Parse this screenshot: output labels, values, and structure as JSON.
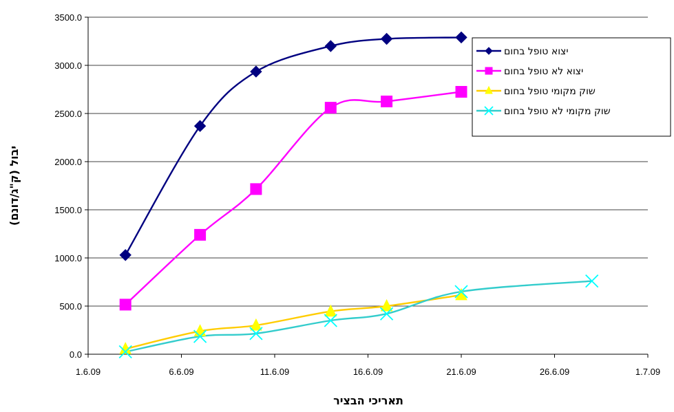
{
  "chart_data": {
    "type": "line",
    "xlabel": "תאריכי הבציר",
    "ylabel": "יבול (ק\"ג/דונם)",
    "x_unit": "date (day.month.09)",
    "xlim": [
      "2009-06-01",
      "2009-07-01"
    ],
    "ylim": [
      0,
      3500
    ],
    "x_ticks": [
      "1.6.09",
      "6.6.09",
      "11.6.09",
      "16.6.09",
      "21.6.09",
      "26.6.09",
      "1.7.09"
    ],
    "y_ticks": [
      "0.0",
      "500.0",
      "1000.0",
      "1500.0",
      "2000.0",
      "2500.0",
      "3000.0",
      "3500.0"
    ],
    "grid": "horizontal",
    "legend_position": "right",
    "series": [
      {
        "name": "יצוא טופל בחום",
        "color": "#000080",
        "marker": "diamond",
        "points": [
          {
            "x": "2009-06-03",
            "y": 1030
          },
          {
            "x": "2009-06-07",
            "y": 2370
          },
          {
            "x": "2009-06-10",
            "y": 2935
          },
          {
            "x": "2009-06-14",
            "y": 3200
          },
          {
            "x": "2009-06-17",
            "y": 3275
          },
          {
            "x": "2009-06-21",
            "y": 3290
          }
        ]
      },
      {
        "name": "יצוא לא טופל בחום",
        "color": "#FF00FF",
        "marker": "square",
        "points": [
          {
            "x": "2009-06-03",
            "y": 515
          },
          {
            "x": "2009-06-07",
            "y": 1240
          },
          {
            "x": "2009-06-10",
            "y": 1715
          },
          {
            "x": "2009-06-14",
            "y": 2560
          },
          {
            "x": "2009-06-17",
            "y": 2625
          },
          {
            "x": "2009-06-21",
            "y": 2725
          }
        ]
      },
      {
        "name": "שוק מקומי טופל בחום",
        "color": "#FFCC00",
        "marker_color": "#FFFF00",
        "marker": "triangle",
        "points": [
          {
            "x": "2009-06-03",
            "y": 55
          },
          {
            "x": "2009-06-07",
            "y": 240
          },
          {
            "x": "2009-06-10",
            "y": 300
          },
          {
            "x": "2009-06-14",
            "y": 445
          },
          {
            "x": "2009-06-17",
            "y": 500
          },
          {
            "x": "2009-06-21",
            "y": 615
          }
        ]
      },
      {
        "name": "שוק מקומי לא טופל בחום",
        "color": "#33CCCC",
        "marker_color": "#00FFFF",
        "marker": "x",
        "points": [
          {
            "x": "2009-06-03",
            "y": 25
          },
          {
            "x": "2009-06-07",
            "y": 185
          },
          {
            "x": "2009-06-10",
            "y": 215
          },
          {
            "x": "2009-06-14",
            "y": 350
          },
          {
            "x": "2009-06-17",
            "y": 420
          },
          {
            "x": "2009-06-21",
            "y": 650
          },
          {
            "x": "2009-06-28",
            "y": 760
          }
        ]
      }
    ]
  }
}
